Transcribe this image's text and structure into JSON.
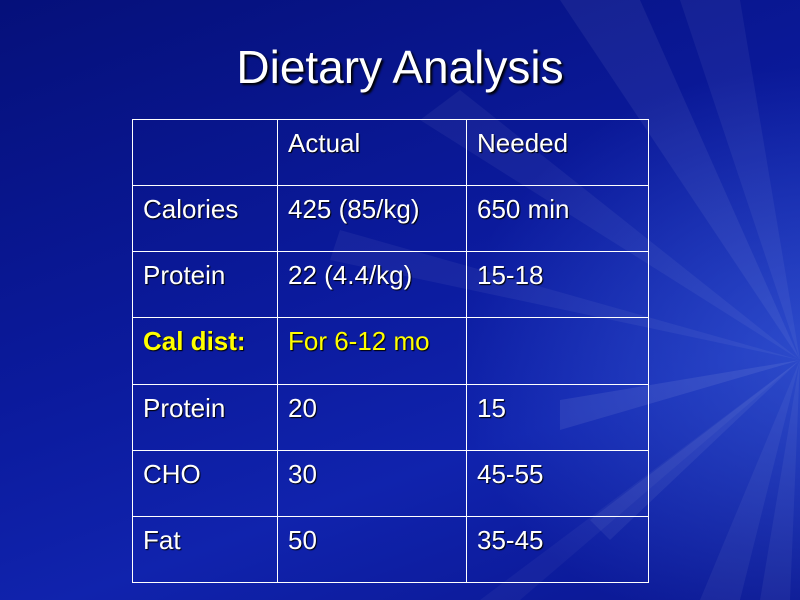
{
  "slide": {
    "title": "Dietary Analysis"
  },
  "table": {
    "header": [
      "",
      "Actual",
      "Needed"
    ],
    "rows": [
      [
        "Calories",
        "425 (85/kg)",
        "650 min"
      ],
      [
        "Protein",
        "22 (4.4/kg)",
        "15-18"
      ],
      [
        "Cal dist:",
        "For 6-12 mo",
        ""
      ],
      [
        "Protein",
        "20",
        "15"
      ],
      [
        "CHO",
        "30",
        "45-55"
      ],
      [
        "Fat",
        "50",
        "35-45"
      ]
    ]
  },
  "colors": {
    "background": "#0a1796",
    "text": "#ffffff",
    "highlight": "#ffff00"
  }
}
